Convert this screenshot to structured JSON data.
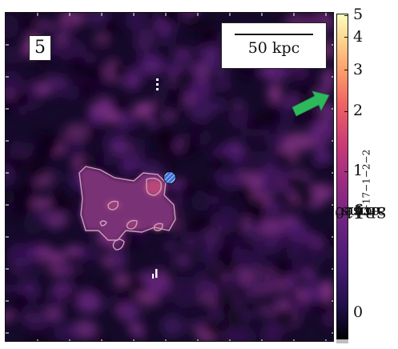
{
  "panel": {
    "label": "5"
  },
  "scale_bar": {
    "text": "50 kpc"
  },
  "colorbar": {
    "ticks": [
      "5",
      "4",
      "3",
      "2",
      "1",
      "0"
    ],
    "label_prefix": "SB [10",
    "label_exp1": "−17",
    "label_mid1": " erg s",
    "label_exp2": "−1",
    "label_mid2": " cm",
    "label_exp3": "−2",
    "label_mid3": " arcsec",
    "label_exp4": "−2",
    "label_suffix": "]",
    "colormap": "magma"
  },
  "colors": {
    "arrow": "#2eb85c",
    "source_marker": "#3b6fd9",
    "contour": "#c9a0b8",
    "background": "#1a0b2e"
  }
}
